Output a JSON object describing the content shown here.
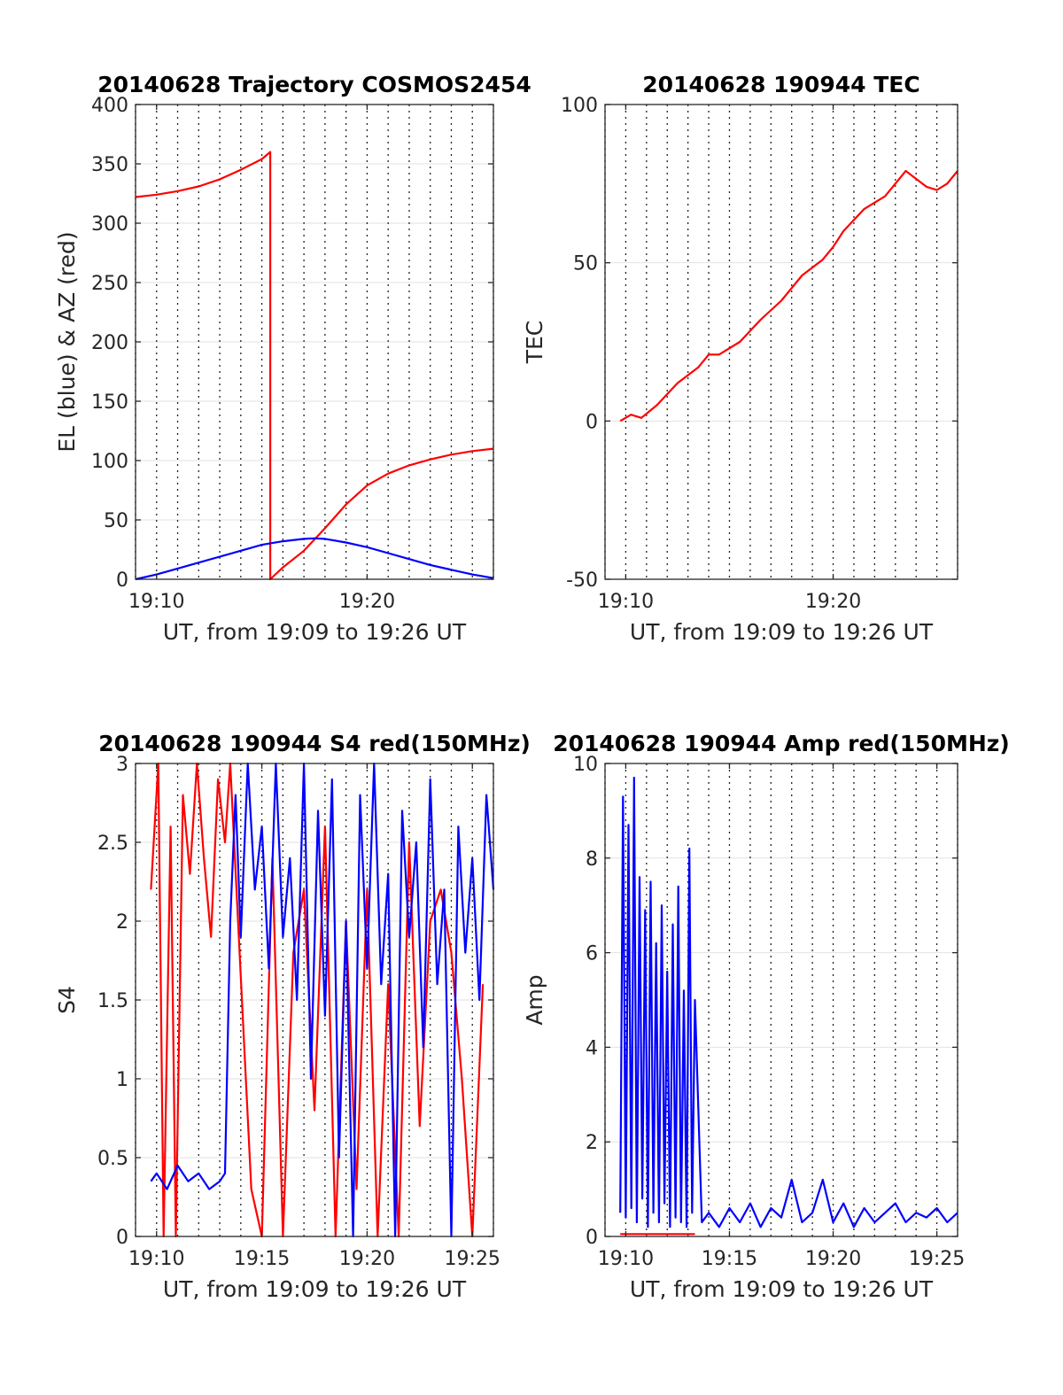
{
  "chart_data": [
    {
      "type": "line",
      "title": "20140628 Trajectory COSMOS2454",
      "xlabel": "UT, from 19:09 to 19:26 UT",
      "ylabel": "EL (blue) & AZ (red)",
      "xlim": [
        "19:09",
        "19:26"
      ],
      "ylim": [
        0,
        400
      ],
      "x_ticks": [
        "19:10",
        "19:20"
      ],
      "y_ticks": [
        "0",
        "50",
        "100",
        "150",
        "200",
        "250",
        "300",
        "350",
        "400"
      ],
      "grid": "dotted vertical every 1 min, light horizontal",
      "series": [
        {
          "color": "#ff0000",
          "x": [
            "19:09:00",
            "19:10:00",
            "19:11:00",
            "19:12:00",
            "19:13:00",
            "19:14:00",
            "19:15:00",
            "19:15:24",
            "19:15:24",
            "19:16:00",
            "19:17:00",
            "19:18:00",
            "19:19:00",
            "19:20:00",
            "19:21:00",
            "19:22:00",
            "19:23:00",
            "19:24:00",
            "19:25:00",
            "19:26:00"
          ],
          "y": [
            322,
            324,
            327,
            331,
            337,
            345,
            354,
            360,
            0,
            10,
            24,
            43,
            63,
            79,
            89,
            96,
            101,
            105,
            108,
            110
          ]
        },
        {
          "color": "#0000ff",
          "x": [
            "19:09:00",
            "19:10:00",
            "19:11:00",
            "19:12:00",
            "19:13:00",
            "19:14:00",
            "19:15:00",
            "19:16:00",
            "19:17:00",
            "19:17:30",
            "19:18:00",
            "19:19:00",
            "19:20:00",
            "19:21:00",
            "19:22:00",
            "19:23:00",
            "19:24:00",
            "19:25:00",
            "19:26:00"
          ],
          "y": [
            0,
            4,
            9,
            14,
            19,
            24,
            29,
            32,
            34,
            34.5,
            34,
            31,
            27,
            22,
            17,
            12,
            8,
            4,
            1
          ]
        }
      ]
    },
    {
      "type": "line",
      "title": "20140628 190944 TEC",
      "xlabel": "UT, from 19:09 to 19:26 UT",
      "ylabel": "TEC",
      "xlim": [
        "19:09",
        "19:26"
      ],
      "ylim": [
        -50,
        100
      ],
      "x_ticks": [
        "19:10",
        "19:20"
      ],
      "y_ticks": [
        "-50",
        "0",
        "50",
        "100"
      ],
      "series": [
        {
          "color": "#ff0000",
          "x": [
            "19:09:44",
            "19:10:15",
            "19:10:45",
            "19:11:30",
            "19:12:30",
            "19:13:30",
            "19:14:00",
            "19:14:30",
            "19:15:30",
            "19:16:30",
            "19:17:30",
            "19:18:30",
            "19:19:30",
            "19:20:00",
            "19:20:30",
            "19:21:30",
            "19:22:30",
            "19:23:00",
            "19:23:30",
            "19:24:30",
            "19:25:00",
            "19:25:30",
            "19:26:00"
          ],
          "y": [
            0,
            2,
            1,
            5,
            12,
            17,
            21,
            21,
            25,
            32,
            38,
            46,
            51,
            55,
            60,
            67,
            71,
            75,
            79,
            74,
            73,
            75,
            79
          ]
        }
      ]
    },
    {
      "type": "line",
      "title": "20140628 190944 S4 red(150MHz)",
      "xlabel": "UT, from 19:09 to 19:26 UT",
      "ylabel": "S4",
      "xlim": [
        "19:09",
        "19:26"
      ],
      "ylim": [
        0,
        3
      ],
      "x_ticks": [
        "19:10",
        "19:15",
        "19:20",
        "19:25"
      ],
      "y_ticks": [
        "0",
        "0.5",
        "1",
        "1.5",
        "2",
        "2.5",
        "3"
      ],
      "series": [
        {
          "color": "#ff0000",
          "x": [
            "19:09:44",
            "19:10:05",
            "19:10:20",
            "19:10:40",
            "19:10:55",
            "19:11:15",
            "19:11:35",
            "19:11:55",
            "19:12:15",
            "19:12:35",
            "19:12:55",
            "19:13:15",
            "19:13:30",
            "19:14:30",
            "19:15:00",
            "19:15:30",
            "19:16:00",
            "19:16:30",
            "19:17:00",
            "19:17:30",
            "19:18:00",
            "19:18:30",
            "19:19:00",
            "19:19:30",
            "19:20:00",
            "19:20:30",
            "19:21:00",
            "19:21:30",
            "19:22:00",
            "19:22:30",
            "19:23:00",
            "19:23:30",
            "19:24:00",
            "19:24:30",
            "19:25:00",
            "19:25:30"
          ],
          "y": [
            2.2,
            3.0,
            0,
            2.6,
            0,
            2.8,
            2.3,
            3.0,
            2.4,
            1.9,
            2.9,
            2.5,
            3.0,
            0.3,
            0,
            2.4,
            0,
            1.8,
            2.2,
            0.8,
            2.6,
            0,
            2.0,
            0.3,
            2.2,
            0,
            1.6,
            0,
            2.5,
            0.7,
            2.0,
            2.2,
            1.8,
            1.0,
            0,
            1.6
          ]
        },
        {
          "color": "#0000ff",
          "x": [
            "19:09:44",
            "19:10:00",
            "19:10:30",
            "19:11:00",
            "19:11:30",
            "19:12:00",
            "19:12:30",
            "19:13:00",
            "19:13:15",
            "19:13:30",
            "19:13:45",
            "19:14:00",
            "19:14:20",
            "19:14:40",
            "19:15:00",
            "19:15:20",
            "19:15:40",
            "19:16:00",
            "19:16:20",
            "19:16:40",
            "19:17:00",
            "19:17:20",
            "19:17:40",
            "19:18:00",
            "19:18:20",
            "19:18:40",
            "19:19:00",
            "19:19:20",
            "19:19:40",
            "19:20:00",
            "19:20:20",
            "19:20:40",
            "19:21:00",
            "19:21:20",
            "19:21:40",
            "19:22:00",
            "19:22:20",
            "19:22:40",
            "19:23:00",
            "19:23:20",
            "19:23:40",
            "19:24:00",
            "19:24:20",
            "19:24:40",
            "19:25:00",
            "19:25:20",
            "19:25:40",
            "19:26:00"
          ],
          "y": [
            0.35,
            0.4,
            0.3,
            0.45,
            0.35,
            0.4,
            0.3,
            0.35,
            0.4,
            2.0,
            2.8,
            1.9,
            3.0,
            2.2,
            2.6,
            1.7,
            3.0,
            1.9,
            2.4,
            1.5,
            3.0,
            1.0,
            2.7,
            1.4,
            2.9,
            0.5,
            2.0,
            0,
            2.8,
            1.7,
            3.0,
            1.6,
            2.3,
            0,
            2.7,
            1.9,
            2.5,
            1.2,
            2.9,
            1.6,
            2.2,
            0,
            2.6,
            1.8,
            2.4,
            1.5,
            2.8,
            2.2
          ]
        }
      ]
    },
    {
      "type": "line",
      "title": "20140628 190944 Amp red(150MHz)",
      "xlabel": "UT, from 19:09 to 19:26 UT",
      "ylabel": "Amp",
      "xlim": [
        "19:09",
        "19:26"
      ],
      "ylim": [
        0,
        10
      ],
      "x_ticks": [
        "19:10",
        "19:15",
        "19:20",
        "19:25"
      ],
      "y_ticks": [
        "0",
        "2",
        "4",
        "6",
        "8",
        "10"
      ],
      "series": [
        {
          "color": "#ff0000",
          "x": [
            "19:09:44",
            "19:10:30",
            "19:11:30",
            "19:12:30",
            "19:13:20"
          ],
          "y": [
            0.05,
            0.05,
            0.05,
            0.05,
            0.05
          ]
        },
        {
          "color": "#0000ff",
          "x": [
            "19:09:44",
            "19:09:52",
            "19:10:00",
            "19:10:08",
            "19:10:16",
            "19:10:24",
            "19:10:32",
            "19:10:40",
            "19:10:48",
            "19:10:56",
            "19:11:04",
            "19:11:12",
            "19:11:20",
            "19:11:28",
            "19:11:36",
            "19:11:44",
            "19:11:52",
            "19:12:00",
            "19:12:08",
            "19:12:16",
            "19:12:24",
            "19:12:32",
            "19:12:40",
            "19:12:48",
            "19:12:56",
            "19:13:04",
            "19:13:12",
            "19:13:20",
            "19:13:40",
            "19:14:00",
            "19:14:30",
            "19:15:00",
            "19:15:30",
            "19:16:00",
            "19:16:30",
            "19:17:00",
            "19:17:30",
            "19:18:00",
            "19:18:30",
            "19:19:00",
            "19:19:30",
            "19:20:00",
            "19:20:30",
            "19:21:00",
            "19:21:30",
            "19:22:00",
            "19:22:30",
            "19:23:00",
            "19:23:30",
            "19:24:00",
            "19:24:30",
            "19:25:00",
            "19:25:30",
            "19:26:00"
          ],
          "y": [
            0.5,
            9.3,
            0.4,
            8.7,
            0.6,
            9.7,
            0.3,
            7.6,
            0.8,
            6.9,
            0.2,
            7.5,
            0.5,
            6.2,
            0.3,
            7.0,
            0.7,
            5.6,
            0.2,
            6.6,
            0.4,
            7.4,
            0.3,
            5.2,
            0.2,
            8.2,
            0.5,
            5.0,
            0.3,
            0.5,
            0.2,
            0.6,
            0.3,
            0.7,
            0.2,
            0.6,
            0.4,
            1.2,
            0.3,
            0.5,
            1.2,
            0.3,
            0.7,
            0.2,
            0.6,
            0.3,
            0.5,
            0.7,
            0.3,
            0.5,
            0.4,
            0.6,
            0.3,
            0.5
          ]
        }
      ]
    }
  ]
}
